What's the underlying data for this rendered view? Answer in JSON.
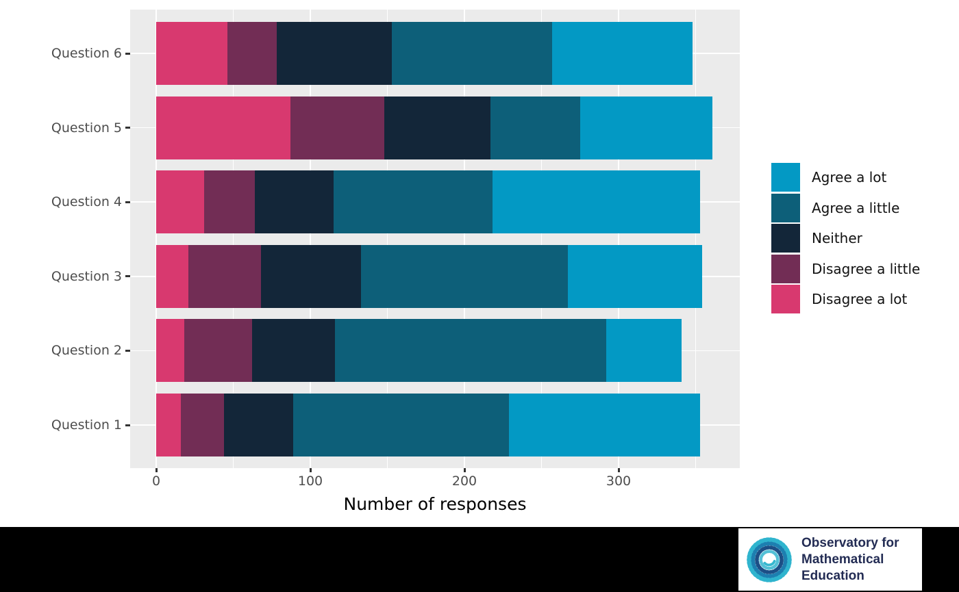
{
  "chart_data": {
    "type": "bar",
    "orientation": "horizontal",
    "stacked": true,
    "title": "",
    "xlabel": "Number of responses",
    "ylabel": "",
    "categories": [
      "Question 6",
      "Question 5",
      "Question 4",
      "Question 3",
      "Question 2",
      "Question 1"
    ],
    "series": [
      {
        "name": "Disagree a lot",
        "color": "#D8396F",
        "values": [
          46,
          87,
          31,
          21,
          18,
          16
        ]
      },
      {
        "name": "Disagree a little",
        "color": "#722D55",
        "values": [
          32,
          61,
          33,
          47,
          44,
          28
        ]
      },
      {
        "name": "Neither",
        "color": "#132639",
        "values": [
          75,
          69,
          51,
          65,
          54,
          45
        ]
      },
      {
        "name": "Agree a little",
        "color": "#0D5F79",
        "values": [
          104,
          58,
          103,
          134,
          176,
          140
        ]
      },
      {
        "name": "Agree a lot",
        "color": "#0399C4",
        "values": [
          91,
          86,
          135,
          87,
          49,
          124
        ]
      }
    ],
    "totals": [
      348,
      361,
      353,
      354,
      341,
      353
    ],
    "xlim": [
      0,
      370
    ],
    "x_ticks": [
      0,
      100,
      200,
      300
    ],
    "x_tick_labels": [
      "0",
      "100",
      "200",
      "300"
    ],
    "x_minor_gridlines": [
      50,
      150,
      250,
      350
    ],
    "grid": true,
    "legend_position": "right",
    "legend_order": [
      "Agree a lot",
      "Agree a little",
      "Neither",
      "Disagree a little",
      "Disagree a lot"
    ]
  },
  "legend": {
    "items": [
      {
        "label": "Agree a lot",
        "color": "#0399C4"
      },
      {
        "label": "Agree a little",
        "color": "#0D5F79"
      },
      {
        "label": "Neither",
        "color": "#132639"
      },
      {
        "label": "Disagree a little",
        "color": "#722D55"
      },
      {
        "label": "Disagree a lot",
        "color": "#D8396F"
      }
    ]
  },
  "logo": {
    "lines": [
      "Observatory for",
      "Mathematical",
      "Education"
    ]
  },
  "colors": {
    "figure_background": "#FFFFFF",
    "panel_background": "#EBEBEB",
    "gridline": "#FFFFFF",
    "axis_text": "#4D4D4D",
    "axis_title": "#000000",
    "bottom_bar": "#000000",
    "logo_text": "#232C54",
    "logo_spiral": "#2FB4CE"
  }
}
